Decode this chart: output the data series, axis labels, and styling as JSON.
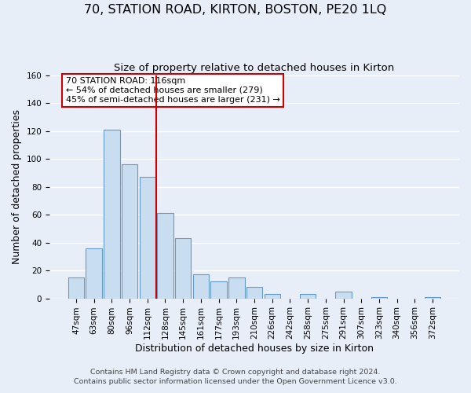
{
  "title": "70, STATION ROAD, KIRTON, BOSTON, PE20 1LQ",
  "subtitle": "Size of property relative to detached houses in Kirton",
  "xlabel": "Distribution of detached houses by size in Kirton",
  "ylabel": "Number of detached properties",
  "bar_color": "#c8ddf0",
  "bar_edge_color": "#6699cc",
  "categories": [
    "47sqm",
    "63sqm",
    "80sqm",
    "96sqm",
    "112sqm",
    "128sqm",
    "145sqm",
    "161sqm",
    "177sqm",
    "193sqm",
    "210sqm",
    "226sqm",
    "242sqm",
    "258sqm",
    "275sqm",
    "291sqm",
    "307sqm",
    "323sqm",
    "340sqm",
    "356sqm",
    "372sqm"
  ],
  "values": [
    15,
    36,
    121,
    96,
    87,
    61,
    43,
    17,
    12,
    15,
    8,
    3,
    0,
    3,
    0,
    5,
    0,
    1,
    0,
    0,
    1
  ],
  "ylim": [
    0,
    160
  ],
  "yticks": [
    0,
    20,
    40,
    60,
    80,
    100,
    120,
    140,
    160
  ],
  "vline_x": 4.5,
  "vline_color": "#cc0000",
  "annotation_text": "70 STATION ROAD: 116sqm\n← 54% of detached houses are smaller (279)\n45% of semi-detached houses are larger (231) →",
  "footer1": "Contains HM Land Registry data © Crown copyright and database right 2024.",
  "footer2": "Contains public sector information licensed under the Open Government Licence v3.0.",
  "background_color": "#e8eef8",
  "grid_color": "#ffffff",
  "title_fontsize": 11.5,
  "subtitle_fontsize": 9.5,
  "axis_label_fontsize": 9,
  "tick_fontsize": 7.5,
  "footer_fontsize": 6.8,
  "annotation_fontsize": 8
}
